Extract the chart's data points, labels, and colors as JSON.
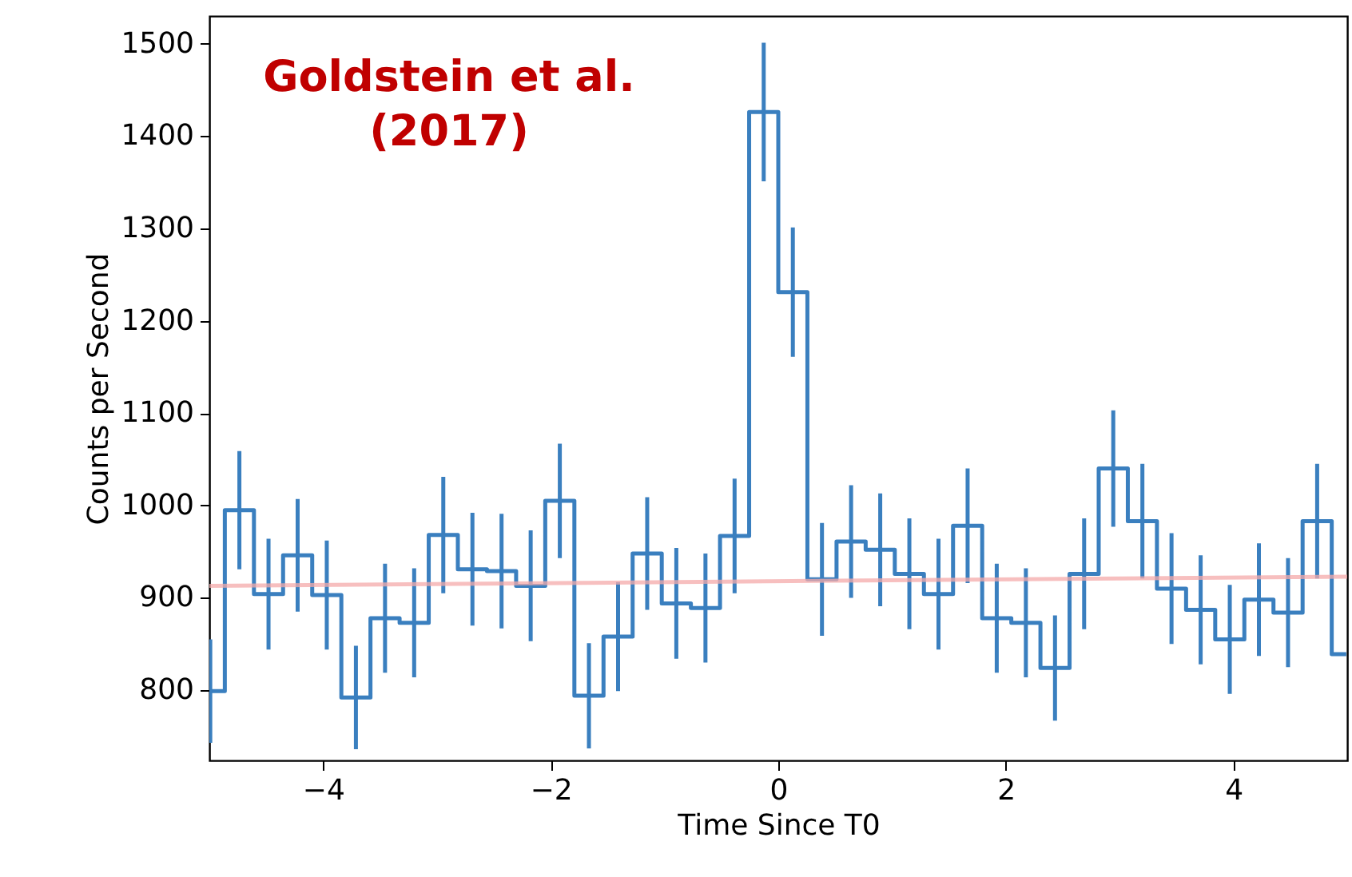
{
  "chart_data": {
    "type": "step",
    "xlabel": "Time Since T0",
    "ylabel": "Counts per Second",
    "annotations": [
      "Goldstein et al.\n(2017)"
    ],
    "xlim": [
      -5,
      5
    ],
    "xticks": [
      -4,
      -2,
      0,
      2,
      4
    ],
    "ylim": [
      724,
      1530
    ],
    "yticks": [
      800,
      900,
      1000,
      1100,
      1200,
      1300,
      1400,
      1500
    ],
    "grid": false,
    "series": [
      {
        "color": "#3a7fbf",
        "x": [
          -4.992,
          -4.736,
          -4.48,
          -4.224,
          -3.968,
          -3.712,
          -3.456,
          -3.2,
          -2.944,
          -2.688,
          -2.432,
          -2.176,
          -1.92,
          -1.664,
          -1.408,
          -1.152,
          -0.896,
          -0.64,
          -0.384,
          -0.128,
          0.128,
          0.384,
          0.64,
          0.896,
          1.152,
          1.408,
          1.664,
          1.92,
          2.176,
          2.432,
          2.688,
          2.944,
          3.2,
          3.456,
          3.712,
          3.968,
          4.224,
          4.48,
          4.736,
          4.992
        ],
        "values": [
          799,
          995,
          904,
          946,
          903,
          792,
          878,
          873,
          968,
          931,
          929,
          913,
          1005,
          794,
          858,
          948,
          894,
          889,
          967,
          1426,
          1231,
          920,
          961,
          952,
          926,
          904,
          978,
          878,
          873,
          824,
          926,
          1040,
          983,
          910,
          887,
          855,
          898,
          884,
          983,
          839
        ],
        "errors": [
          56,
          64,
          60,
          61,
          59,
          56,
          59,
          59,
          63,
          61,
          62,
          60,
          62,
          57,
          59,
          61,
          60,
          59,
          62,
          75,
          70,
          61,
          61,
          61,
          60,
          60,
          62,
          59,
          59,
          57,
          60,
          63,
          62,
          60,
          59,
          59,
          61,
          59,
          62,
          null
        ]
      },
      {
        "type": "line",
        "color": "#f4a9a9",
        "x": [
          -5,
          5
        ],
        "values": [
          913,
          923
        ]
      }
    ]
  }
}
